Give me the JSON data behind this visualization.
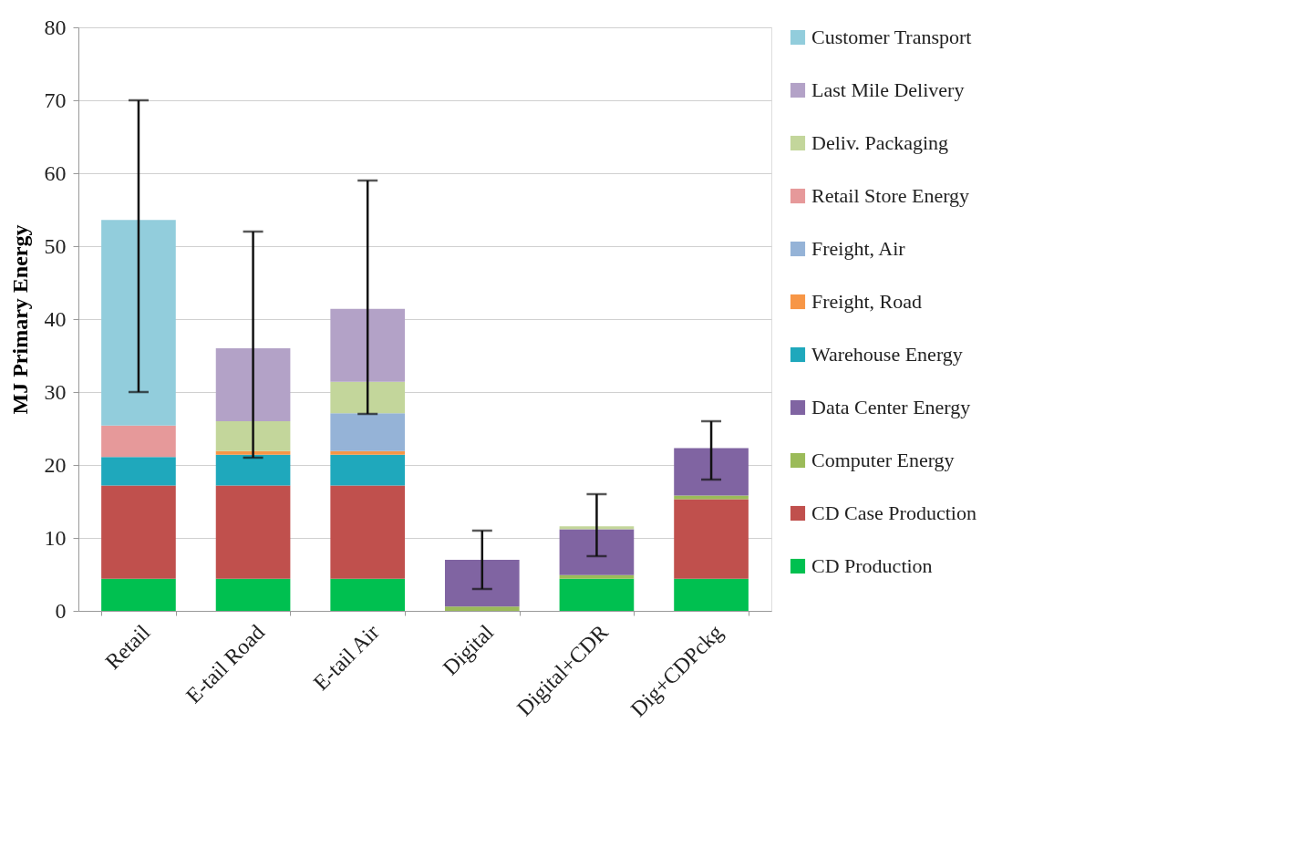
{
  "chart_data": {
    "type": "bar",
    "stacked": true,
    "ylabel": "MJ Primary Energy",
    "categories": [
      "Retail",
      "E-tail Road",
      "E-tail Air",
      "Digital",
      "Digital+CDR",
      "Dig+CDPckg"
    ],
    "series": [
      {
        "name": "CD Production",
        "color": "#00c050",
        "values": [
          4.4,
          4.4,
          4.4,
          null,
          4.4,
          4.4
        ]
      },
      {
        "name": "CD Case Production",
        "color": "#c0504d",
        "values": [
          12.8,
          12.8,
          12.8,
          null,
          null,
          10.9
        ]
      },
      {
        "name": "Computer Energy",
        "color": "#9bbb59",
        "values": [
          null,
          null,
          null,
          0.6,
          0.5,
          0.5
        ]
      },
      {
        "name": "Data Center Energy",
        "color": "#8064a2",
        "values": [
          null,
          null,
          null,
          6.4,
          6.3,
          6.5
        ],
        "errors": [
          null,
          null,
          null,
          [
            3,
            11
          ],
          null,
          [
            18,
            26
          ]
        ]
      },
      {
        "name": "Warehouse Energy",
        "color": "#1fa8bc",
        "values": [
          3.9,
          4.2,
          4.2,
          null,
          null,
          null
        ]
      },
      {
        "name": "Freight, Road",
        "color": "#f79646",
        "values": [
          null,
          0.5,
          0.5,
          null,
          null,
          null
        ]
      },
      {
        "name": "Freight, Air",
        "color": "#95b3d7",
        "values": [
          null,
          null,
          5.2,
          null,
          null,
          null
        ]
      },
      {
        "name": "Retail Store Energy",
        "color": "#e6999a",
        "values": [
          4.3,
          null,
          null,
          null,
          null,
          null
        ]
      },
      {
        "name": "Deliv. Packaging",
        "color": "#c3d69b",
        "values": [
          null,
          4.1,
          4.3,
          null,
          0.4,
          null
        ],
        "errors": [
          null,
          null,
          null,
          null,
          [
            7.5,
            16
          ],
          null
        ]
      },
      {
        "name": "Last Mile Delivery",
        "color": "#b3a2c7",
        "values": [
          null,
          10.0,
          10.0,
          null,
          null,
          null
        ],
        "errors": [
          null,
          [
            21,
            52
          ],
          [
            27,
            59
          ],
          null,
          null,
          null
        ]
      },
      {
        "name": "Customer Transport",
        "color": "#92cddc",
        "values": [
          28.2,
          null,
          null,
          null,
          null,
          null
        ],
        "errors": [
          [
            30,
            70
          ],
          null,
          null,
          null,
          null,
          null
        ]
      }
    ],
    "ylim": [
      0,
      80
    ],
    "yticks": [
      0,
      10,
      20,
      30,
      40,
      50,
      60,
      70,
      80
    ],
    "grid": "y",
    "legend": "right"
  }
}
